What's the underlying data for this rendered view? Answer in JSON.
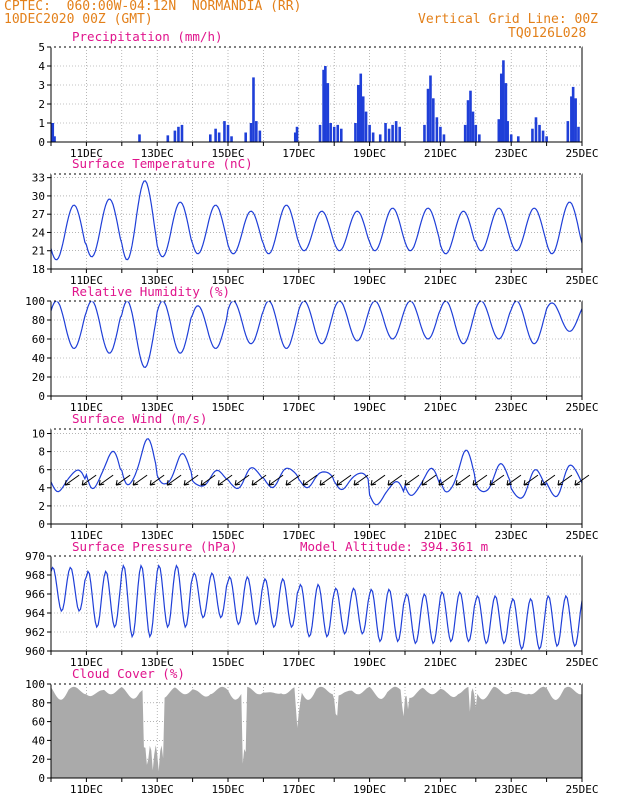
{
  "header": {
    "line1_left": "CPTEC:  060:00W-04:12N  NORMANDIA (RR)",
    "line2_left": "10DEC2020 00Z (GMT)",
    "line1_right": "Vertical Grid Line: 00Z",
    "line2_right": "TQ0126L028"
  },
  "colors": {
    "header": "#e3801a",
    "title": "#e0148c",
    "series": "#1f3fd8",
    "bars": "#1f3fd8",
    "cloud": "#aaaaaa",
    "grid": "#888888",
    "wind_arrows": "#000000"
  },
  "chart_data": [
    {
      "type": "bar",
      "title": "Precipitation (mm/h)",
      "x_tick_labels": [
        "11DEC",
        "13DEC",
        "15DEC",
        "17DEC",
        "19DEC",
        "21DEC",
        "23DEC",
        "25DEC"
      ],
      "y_ticks": [
        "0",
        "1",
        "2",
        "3",
        "4",
        "5"
      ],
      "ylim": [
        0,
        5
      ],
      "x_range_days": [
        10,
        25
      ],
      "series_color": "bars",
      "points": [
        [
          10.05,
          1.0
        ],
        [
          10.1,
          0.3
        ],
        [
          12.5,
          0.4
        ],
        [
          13.3,
          0.35
        ],
        [
          13.5,
          0.6
        ],
        [
          13.6,
          0.8
        ],
        [
          13.7,
          0.9
        ],
        [
          14.5,
          0.4
        ],
        [
          14.65,
          0.7
        ],
        [
          14.75,
          0.5
        ],
        [
          14.9,
          1.1
        ],
        [
          15.0,
          0.9
        ],
        [
          15.1,
          0.3
        ],
        [
          15.5,
          0.5
        ],
        [
          15.65,
          1.0
        ],
        [
          15.72,
          3.4
        ],
        [
          15.8,
          1.1
        ],
        [
          15.9,
          0.6
        ],
        [
          16.9,
          0.5
        ],
        [
          16.95,
          0.8
        ],
        [
          17.6,
          0.9
        ],
        [
          17.7,
          3.8
        ],
        [
          17.75,
          4.0
        ],
        [
          17.82,
          3.1
        ],
        [
          17.9,
          1.0
        ],
        [
          18.0,
          0.8
        ],
        [
          18.1,
          0.9
        ],
        [
          18.2,
          0.7
        ],
        [
          18.6,
          1.0
        ],
        [
          18.68,
          3.0
        ],
        [
          18.75,
          3.6
        ],
        [
          18.82,
          2.4
        ],
        [
          18.9,
          1.6
        ],
        [
          19.0,
          0.9
        ],
        [
          19.1,
          0.5
        ],
        [
          19.3,
          0.4
        ],
        [
          19.45,
          1.0
        ],
        [
          19.55,
          0.7
        ],
        [
          19.65,
          0.9
        ],
        [
          19.75,
          1.1
        ],
        [
          19.85,
          0.8
        ],
        [
          20.55,
          0.9
        ],
        [
          20.65,
          2.8
        ],
        [
          20.72,
          3.5
        ],
        [
          20.8,
          2.3
        ],
        [
          20.9,
          1.3
        ],
        [
          21.0,
          0.8
        ],
        [
          21.1,
          0.4
        ],
        [
          21.7,
          0.9
        ],
        [
          21.78,
          2.2
        ],
        [
          21.85,
          2.7
        ],
        [
          21.92,
          1.6
        ],
        [
          22.0,
          0.9
        ],
        [
          22.1,
          0.4
        ],
        [
          22.65,
          1.2
        ],
        [
          22.72,
          3.6
        ],
        [
          22.78,
          4.3
        ],
        [
          22.85,
          3.1
        ],
        [
          22.9,
          1.1
        ],
        [
          23.0,
          0.4
        ],
        [
          23.2,
          0.3
        ],
        [
          23.6,
          0.7
        ],
        [
          23.7,
          1.3
        ],
        [
          23.8,
          0.9
        ],
        [
          23.9,
          0.6
        ],
        [
          24.0,
          0.3
        ],
        [
          24.6,
          1.1
        ],
        [
          24.7,
          2.4
        ],
        [
          24.75,
          2.9
        ],
        [
          24.82,
          2.3
        ],
        [
          24.9,
          0.8
        ]
      ]
    },
    {
      "type": "line",
      "title": "Surface Temperature (nC)",
      "x_tick_labels": [
        "11DEC",
        "13DEC",
        "15DEC",
        "17DEC",
        "19DEC",
        "21DEC",
        "23DEC",
        "25DEC"
      ],
      "y_ticks": [
        "18",
        "21",
        "24",
        "27",
        "30",
        "33"
      ],
      "ylim": [
        18,
        33.6
      ],
      "x_range_days": [
        10,
        25
      ],
      "daily_max": [
        28.5,
        29.5,
        32.5,
        29,
        28.5,
        27.5,
        28.5,
        27.5,
        27.5,
        28,
        28,
        27.5,
        28,
        28,
        29
      ],
      "daily_min": [
        19.5,
        20,
        19.5,
        20,
        20.5,
        20.5,
        20.5,
        21,
        21,
        21,
        21,
        20.5,
        21,
        21,
        20.5
      ]
    },
    {
      "type": "line",
      "title": "Relative Humidity (%)",
      "x_tick_labels": [
        "11DEC",
        "13DEC",
        "15DEC",
        "17DEC",
        "19DEC",
        "21DEC",
        "23DEC",
        "25DEC"
      ],
      "y_ticks": [
        "0",
        "20",
        "40",
        "60",
        "80",
        "100"
      ],
      "ylim": [
        0,
        100
      ],
      "x_range_days": [
        10,
        25
      ],
      "daily_max": [
        100,
        100,
        100,
        100,
        95,
        100,
        100,
        100,
        100,
        100,
        100,
        100,
        100,
        100,
        98
      ],
      "daily_min": [
        50,
        45,
        30,
        45,
        50,
        55,
        50,
        55,
        58,
        60,
        60,
        55,
        60,
        55,
        68
      ]
    },
    {
      "type": "line",
      "title": "Surface Wind (m/s)",
      "x_tick_labels": [
        "11DEC",
        "13DEC",
        "15DEC",
        "17DEC",
        "19DEC",
        "21DEC",
        "23DEC",
        "25DEC"
      ],
      "y_ticks": [
        "0",
        "2",
        "4",
        "6",
        "8",
        "10"
      ],
      "ylim": [
        0,
        10.5
      ],
      "x_range_days": [
        10,
        25
      ],
      "daily_max": [
        6.3,
        8.3,
        9.5,
        7.8,
        6.0,
        6.5,
        6.6,
        6.2,
        6.0,
        5.0,
        6.3,
        8.2,
        6.7,
        6.2,
        7.0
      ],
      "daily_min": [
        3.5,
        3.5,
        3.4,
        3.6,
        3.8,
        3.6,
        3.9,
        4.0,
        3.8,
        2.0,
        2.8,
        2.6,
        2.8,
        2.2,
        2.6
      ],
      "wind_arrow_direction": "from NE"
    },
    {
      "type": "line",
      "title": "Surface Pressure (hPa)",
      "annotation": "Model Altitude: 394.361 m",
      "x_tick_labels": [
        "11DEC",
        "13DEC",
        "15DEC",
        "17DEC",
        "19DEC",
        "21DEC",
        "23DEC",
        "25DEC"
      ],
      "y_ticks": [
        "960",
        "962",
        "964",
        "966",
        "968",
        "970"
      ],
      "ylim": [
        960,
        970
      ],
      "x_range_days": [
        10,
        25
      ],
      "daily_max": [
        968.8,
        968.4,
        969.0,
        969.0,
        968.2,
        967.8,
        967.6,
        967.0,
        966.6,
        966.5,
        966.0,
        966.2,
        965.8,
        965.5,
        965.8
      ],
      "daily_min": [
        964.2,
        962.5,
        961.5,
        962.5,
        963.5,
        962.8,
        962.5,
        961.5,
        961.8,
        961.0,
        960.8,
        961.0,
        960.8,
        960.2,
        960.5
      ]
    },
    {
      "type": "area",
      "title": "Cloud Cover (%)",
      "x_tick_labels": [
        "11DEC",
        "13DEC",
        "15DEC",
        "17DEC",
        "19DEC",
        "21DEC",
        "23DEC",
        "25DEC"
      ],
      "y_ticks": [
        "0",
        "20",
        "40",
        "60",
        "80",
        "100"
      ],
      "ylim": [
        0,
        100
      ],
      "x_range_days": [
        10,
        25
      ],
      "typical_value": 93,
      "dips": [
        [
          12.6,
          13.2,
          5
        ],
        [
          15.4,
          15.5,
          2
        ],
        [
          16.9,
          17.05,
          50
        ],
        [
          18.0,
          18.1,
          55
        ],
        [
          19.9,
          20.1,
          60
        ],
        [
          21.8,
          22.0,
          70
        ]
      ]
    }
  ]
}
